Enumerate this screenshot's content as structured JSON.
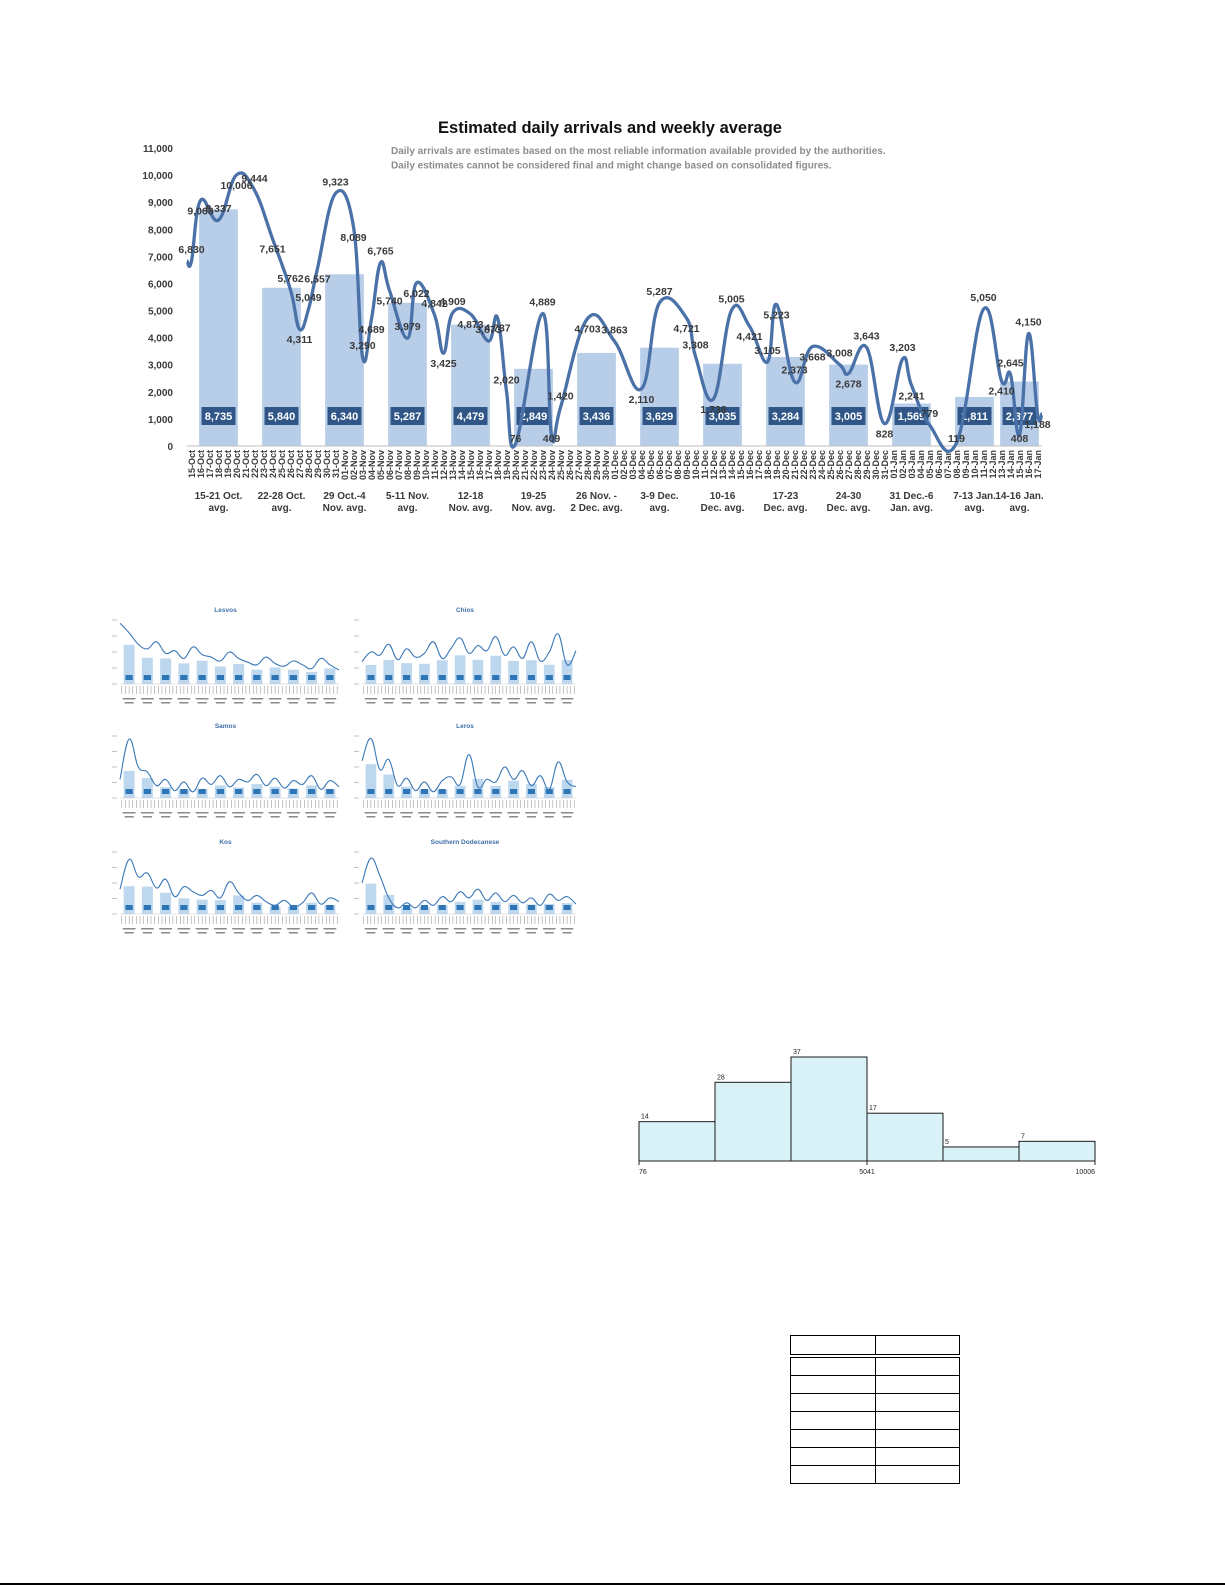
{
  "chart_data": [
    {
      "type": "bar",
      "title": "Estimated daily arrivals and weekly average",
      "subtitle": [
        "Daily arrivals are estimates based on the most reliable information available provided by the authorities.",
        "Daily estimates cannot be considered final and might change based on consolidated figures."
      ],
      "ylim": [
        0,
        11000
      ],
      "y_ticks": [
        "0",
        "1,000",
        "2,000",
        "3,000",
        "4,000",
        "5,000",
        "6,000",
        "7,000",
        "8,000",
        "9,000",
        "10,000",
        "11,000"
      ],
      "dates": [
        "15-Oct",
        "16-Oct",
        "17-Oct",
        "18-Oct",
        "19-Oct",
        "20-Oct",
        "21-Oct",
        "22-Oct",
        "23-Oct",
        "24-Oct",
        "25-Oct",
        "26-Oct",
        "27-Oct",
        "28-Oct",
        "29-Oct",
        "30-Oct",
        "31-Oct",
        "01-Nov",
        "02-Nov",
        "03-Nov",
        "04-Nov",
        "05-Nov",
        "06-Nov",
        "07-Nov",
        "08-Nov",
        "09-Nov",
        "10-Nov",
        "11-Nov",
        "12-Nov",
        "13-Nov",
        "14-Nov",
        "15-Nov",
        "16-Nov",
        "17-Nov",
        "18-Nov",
        "19-Nov",
        "20-Nov",
        "21-Nov",
        "22-Nov",
        "23-Nov",
        "24-Nov",
        "25-Nov",
        "26-Nov",
        "27-Nov",
        "28-Nov",
        "29-Nov",
        "30-Nov",
        "01-Dec",
        "02-Dec",
        "03-Dec",
        "04-Dec",
        "05-Dec",
        "06-Dec",
        "07-Dec",
        "08-Dec",
        "09-Dec",
        "10-Dec",
        "11-Dec",
        "12-Dec",
        "13-Dec",
        "14-Dec",
        "15-Dec",
        "16-Dec",
        "17-Dec",
        "18-Dec",
        "19-Dec",
        "20-Dec",
        "21-Dec",
        "22-Dec",
        "23-Dec",
        "24-Dec",
        "25-Dec",
        "26-Dec",
        "27-Dec",
        "28-Dec",
        "29-Dec",
        "30-Dec",
        "31-Dec",
        "01-Jan",
        "02-Jan",
        "03-Jan",
        "04-Jan",
        "05-Jan",
        "06-Jan",
        "07-Jan",
        "08-Jan",
        "09-Jan",
        "10-Jan",
        "11-Jan",
        "12-Jan",
        "13-Jan",
        "14-Jan",
        "15-Jan",
        "16-Jan",
        "17-Jan"
      ],
      "daily": [
        6830,
        9063,
        8337,
        10006,
        9444,
        7651,
        5762,
        4311,
        5049,
        6557,
        9323,
        8089,
        3290,
        4689,
        6765,
        5740,
        3979,
        6022,
        4842,
        3425,
        4909,
        4873,
        3873,
        4737,
        2020,
        76,
        4889,
        409,
        1420,
        4703,
        3863,
        2110,
        5287,
        4721,
        3308,
        1738,
        5005,
        4421,
        3105,
        5223,
        2373,
        3668,
        3008,
        2678,
        3643,
        828,
        3203,
        2241,
        779,
        119,
        5050,
        2410,
        2645,
        408,
        4150,
        1188
      ],
      "daily_labels": [
        "6,830",
        "9,063",
        "8,337",
        "10,006",
        "9,444",
        "7,651",
        "5,762",
        "4,311",
        "5,049",
        "6,557",
        "9,323",
        "8,089",
        "3,290",
        "4,689",
        "6,765",
        "5,740",
        "3,979",
        "6,022",
        "4,842",
        "3,425",
        "4,909",
        "4,873",
        "3,873",
        "4,737",
        "2,020",
        "76",
        "4,889",
        "409",
        "1,420",
        "4,703",
        "3,863",
        "2,110",
        "5,287",
        "4,721",
        "3,308",
        "1,738",
        "5,005",
        "4,421",
        "3,105",
        "5,223",
        "2,373",
        "3,668",
        "3,008",
        "2,678",
        "3,643",
        "828",
        "3,203",
        "2,241",
        "779",
        "119",
        "5,050",
        "2,410",
        "2,645",
        "408",
        "4,150",
        "1,188"
      ],
      "daily_positions": [
        0,
        1,
        3,
        5,
        7,
        9,
        11,
        12,
        13,
        14,
        16,
        18,
        19,
        20,
        21,
        22,
        24,
        25,
        27,
        28,
        29,
        31,
        33,
        34,
        35,
        36,
        39,
        40,
        41,
        44,
        47,
        50,
        52,
        55,
        56,
        58,
        60,
        62,
        64,
        65,
        67,
        69,
        72,
        73,
        75,
        77,
        79,
        80,
        82,
        85,
        88,
        90,
        91,
        92,
        93,
        94
      ],
      "weeks": [
        {
          "label": [
            "15-21 Oct.",
            "avg."
          ],
          "value": 8735,
          "value_label": "8,735",
          "start": 0,
          "end": 6
        },
        {
          "label": [
            "22-28 Oct.",
            "avg."
          ],
          "value": 5840,
          "value_label": "5,840",
          "start": 7,
          "end": 13
        },
        {
          "label": [
            "29 Oct.-4",
            "Nov. avg."
          ],
          "value": 6340,
          "value_label": "6,340",
          "start": 14,
          "end": 20
        },
        {
          "label": [
            "5-11 Nov.",
            "avg."
          ],
          "value": 5287,
          "value_label": "5,287",
          "start": 21,
          "end": 27
        },
        {
          "label": [
            "12-18",
            "Nov. avg."
          ],
          "value": 4479,
          "value_label": "4,479",
          "start": 28,
          "end": 34
        },
        {
          "label": [
            "19-25",
            "Nov. avg."
          ],
          "value": 2849,
          "value_label": "2,849",
          "start": 35,
          "end": 41
        },
        {
          "label": [
            "26 Nov. -",
            "2 Dec. avg."
          ],
          "value": 3436,
          "value_label": "3,436",
          "start": 42,
          "end": 48
        },
        {
          "label": [
            "3-9 Dec.",
            "avg."
          ],
          "value": 3629,
          "value_label": "3,629",
          "start": 49,
          "end": 55
        },
        {
          "label": [
            "10-16",
            "Dec. avg."
          ],
          "value": 3035,
          "value_label": "3,035",
          "start": 56,
          "end": 62
        },
        {
          "label": [
            "17-23",
            "Dec. avg."
          ],
          "value": 3284,
          "value_label": "3,284",
          "start": 63,
          "end": 69
        },
        {
          "label": [
            "24-30",
            "Dec. avg."
          ],
          "value": 3005,
          "value_label": "3,005",
          "start": 70,
          "end": 76
        },
        {
          "label": [
            "31 Dec.-6",
            "Jan. avg."
          ],
          "value": 1569,
          "value_label": "1,569",
          "start": 77,
          "end": 83
        },
        {
          "label": [
            "7-13 Jan.",
            "avg."
          ],
          "value": 1811,
          "value_label": "1,811",
          "start": 84,
          "end": 90
        },
        {
          "label": [
            "14-16 Jan.",
            "avg."
          ],
          "value": 2377,
          "value_label": "2,377",
          "start": 91,
          "end": 93
        }
      ],
      "colors": {
        "bar": "#b7cde8",
        "line": "#4a72a8",
        "badge": "#2f5687",
        "badge_text": "#ffffff",
        "text": "#3a3a3a",
        "subtitle": "#8c8c8c"
      }
    },
    {
      "type": "line",
      "panels": [
        {
          "title": "Lesvos"
        },
        {
          "title": "Chios"
        },
        {
          "title": "Samos"
        },
        {
          "title": "Leros"
        },
        {
          "title": "Kos"
        },
        {
          "title": "Southern Dodecanese"
        }
      ],
      "colors": {
        "title": "#3f6fa8",
        "bar": "#bcd7ee",
        "line": "#3a78b8",
        "badge": "#2e75b6"
      }
    },
    {
      "type": "bar",
      "bin_counts": [
        14,
        28,
        37,
        17,
        5,
        7
      ],
      "count_labels": [
        "14",
        "28",
        "37",
        "17",
        "5",
        "7"
      ],
      "x_tick_labels": [
        "76",
        "5041",
        "10006"
      ],
      "colors": {
        "fill": "#d8f2f8",
        "edge": "#1a1a1a"
      }
    }
  ]
}
